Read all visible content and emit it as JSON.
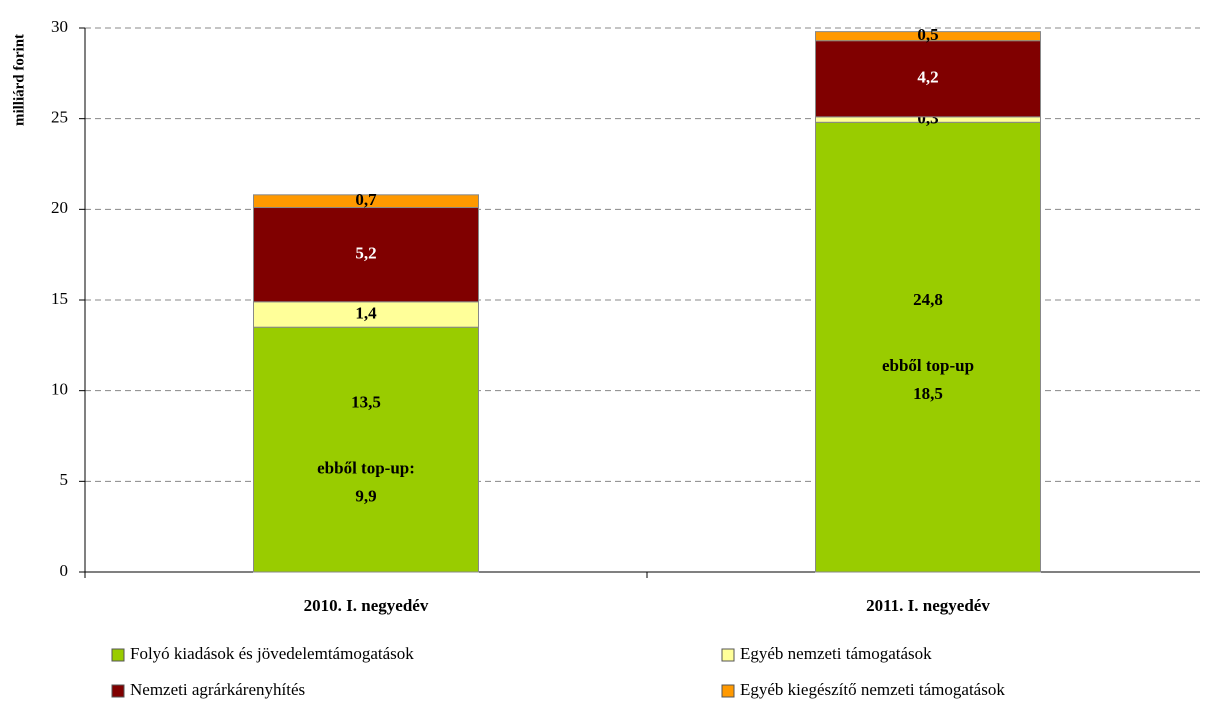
{
  "chart_data": {
    "type": "stacked_bar",
    "y_label": "milliárd forint",
    "categories": [
      "2010. I. negyedév",
      "2011. I. negyedév"
    ],
    "series": [
      {
        "name": "Folyó kiadások és jövedelemtámogatások",
        "color": "#99cc00",
        "values": [
          13.5,
          24.8
        ],
        "value_labels": [
          "13,5",
          "24,8"
        ]
      },
      {
        "name": "Egyéb nemzeti támogatások",
        "color": "#ffff99",
        "values": [
          1.4,
          0.3
        ],
        "value_labels": [
          "1,4",
          "0,3"
        ]
      },
      {
        "name": "Nemzeti agrárkárenyhítés",
        "color": "#800000",
        "values": [
          5.2,
          4.2
        ],
        "value_labels": [
          "5,2",
          "4,2"
        ]
      },
      {
        "name": "Egyéb kiegészítő nemzeti támogatások",
        "color": "#ff9900",
        "values": [
          0.7,
          0.5
        ],
        "value_labels": [
          "0,7",
          "0,5"
        ]
      }
    ],
    "annotations": [
      {
        "text": "ebből top-up:",
        "value": 9.9,
        "value_label": "9,9"
      },
      {
        "text": "ebből top-up",
        "value": 18.5,
        "value_label": "18,5"
      }
    ],
    "ylim": [
      0,
      30
    ],
    "yticks": [
      0,
      5,
      10,
      15,
      20,
      25,
      30
    ],
    "grid": true
  }
}
